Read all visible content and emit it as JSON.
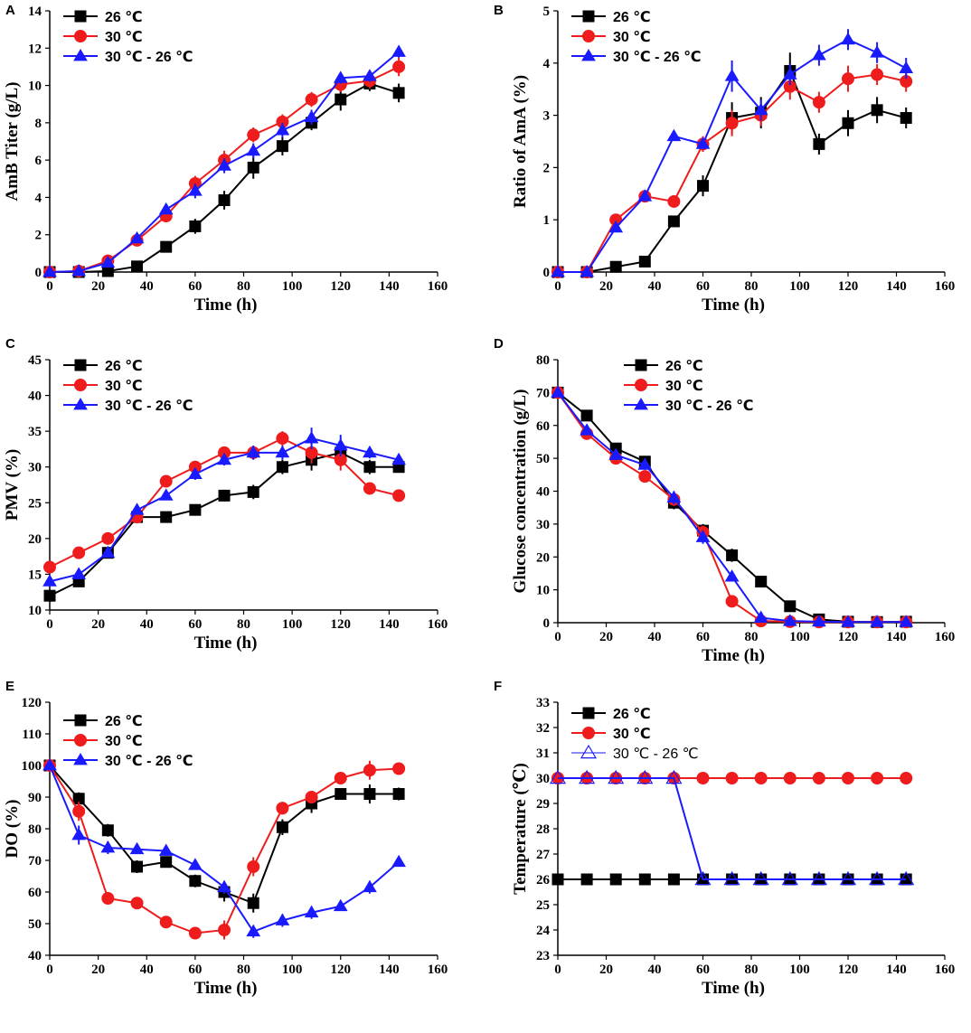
{
  "figure": {
    "description_panels": [
      "A",
      "B",
      "C",
      "D",
      "E",
      "F"
    ]
  },
  "series_styles": {
    "26": {
      "color": "#000000",
      "marker": "square"
    },
    "30": {
      "color": "#ee1c1c",
      "marker": "circle"
    },
    "shift": {
      "color": "#1a1aff",
      "marker": "triangle"
    }
  },
  "chart_data": [
    {
      "panel": "A",
      "type": "line",
      "xlabel": "Time (h)",
      "ylabel": "AmB Titer (g/L)",
      "xlim": [
        0,
        160
      ],
      "ylim": [
        0,
        14
      ],
      "xticks": [
        0,
        20,
        40,
        60,
        80,
        100,
        120,
        140,
        160
      ],
      "yticks": [
        0,
        2,
        4,
        6,
        8,
        10,
        12,
        14
      ],
      "legend": [
        "26 ℃",
        "30 ℃",
        "30 ℃ - 26 ℃"
      ],
      "series": [
        {
          "key": "26",
          "name": "26 ℃",
          "x": [
            0,
            12,
            24,
            36,
            48,
            60,
            72,
            84,
            96,
            108,
            120,
            132,
            144
          ],
          "y": [
            0,
            0,
            0.05,
            0.3,
            1.35,
            2.45,
            3.85,
            5.6,
            6.75,
            8.0,
            9.25,
            10.1,
            9.6
          ],
          "err": [
            0,
            0,
            0,
            0.1,
            0.2,
            0.4,
            0.5,
            0.6,
            0.5,
            0.4,
            0.6,
            0.4,
            0.5
          ]
        },
        {
          "key": "30",
          "name": "30 ℃",
          "x": [
            0,
            12,
            24,
            36,
            48,
            60,
            72,
            84,
            96,
            108,
            120,
            132,
            144
          ],
          "y": [
            0,
            0.05,
            0.6,
            1.7,
            3.0,
            4.75,
            6.0,
            7.35,
            8.05,
            9.25,
            10.05,
            10.25,
            11.0
          ],
          "err": [
            0,
            0,
            0.1,
            0.2,
            0.3,
            0.4,
            0.5,
            0.4,
            0.4,
            0.4,
            0.4,
            0.4,
            0.5
          ]
        },
        {
          "key": "shift",
          "name": "30 ℃ - 26 ℃",
          "x": [
            0,
            12,
            24,
            36,
            48,
            60,
            72,
            84,
            96,
            108,
            120,
            132,
            144
          ],
          "y": [
            0,
            0.05,
            0.5,
            1.8,
            3.35,
            4.35,
            5.7,
            6.5,
            7.6,
            8.3,
            10.4,
            10.5,
            11.8
          ],
          "err": [
            0,
            0,
            0.1,
            0.2,
            0.2,
            0.4,
            0.4,
            0.4,
            0.4,
            0.4,
            0.3,
            0.3,
            0.3
          ]
        }
      ]
    },
    {
      "panel": "B",
      "type": "line",
      "xlabel": "Time (h)",
      "ylabel": "Ratio of AmA (%)",
      "xlim": [
        0,
        160
      ],
      "ylim": [
        0,
        5
      ],
      "xticks": [
        0,
        20,
        40,
        60,
        80,
        100,
        120,
        140,
        160
      ],
      "yticks": [
        0,
        1,
        2,
        3,
        4,
        5
      ],
      "legend": [
        "26 ℃",
        "30 ℃",
        "30 ℃ - 26 ℃"
      ],
      "series": [
        {
          "key": "26",
          "name": "26 ℃",
          "x": [
            0,
            12,
            24,
            36,
            48,
            60,
            72,
            84,
            96,
            108,
            120,
            132,
            144
          ],
          "y": [
            0,
            0,
            0.1,
            0.2,
            0.97,
            1.65,
            2.95,
            3.05,
            3.85,
            2.45,
            2.85,
            3.1,
            2.95
          ],
          "err": [
            0,
            0,
            0,
            0,
            0.05,
            0.2,
            0.3,
            0.3,
            0.35,
            0.2,
            0.25,
            0.25,
            0.2
          ]
        },
        {
          "key": "30",
          "name": "30 ℃",
          "x": [
            0,
            12,
            24,
            36,
            48,
            60,
            72,
            84,
            96,
            108,
            120,
            132,
            144
          ],
          "y": [
            0,
            0,
            1.0,
            1.45,
            1.35,
            2.45,
            2.85,
            3.0,
            3.55,
            3.25,
            3.7,
            3.78,
            3.65
          ],
          "err": [
            0,
            0,
            0,
            0.05,
            0.05,
            0.15,
            0.25,
            0.2,
            0.25,
            0.2,
            0.25,
            0.2,
            0.2
          ]
        },
        {
          "key": "shift",
          "name": "30 ℃ - 26 ℃",
          "x": [
            0,
            12,
            24,
            36,
            48,
            60,
            72,
            84,
            96,
            108,
            120,
            132,
            144
          ],
          "y": [
            0,
            0,
            0.85,
            1.45,
            2.6,
            2.45,
            3.75,
            3.1,
            3.78,
            4.15,
            4.45,
            4.2,
            3.9
          ],
          "err": [
            0,
            0,
            0,
            0.05,
            0.05,
            0.1,
            0.3,
            0.2,
            0.2,
            0.2,
            0.2,
            0.2,
            0.2
          ]
        }
      ]
    },
    {
      "panel": "C",
      "type": "line",
      "xlabel": "Time (h)",
      "ylabel": "PMV (%)",
      "xlim": [
        0,
        160
      ],
      "ylim": [
        10,
        45
      ],
      "xticks": [
        0,
        20,
        40,
        60,
        80,
        100,
        120,
        140,
        160
      ],
      "yticks": [
        10,
        15,
        20,
        25,
        30,
        35,
        40,
        45
      ],
      "legend": [
        "26 ℃",
        "30 ℃",
        "30 ℃ - 26 ℃"
      ],
      "series": [
        {
          "key": "26",
          "name": "26 ℃",
          "x": [
            0,
            12,
            24,
            36,
            48,
            60,
            72,
            84,
            96,
            108,
            120,
            132,
            144
          ],
          "y": [
            12,
            14,
            18,
            23,
            23,
            24,
            26,
            26.5,
            30,
            31,
            32,
            30,
            30
          ],
          "err": [
            0,
            0,
            0,
            0.5,
            0.5,
            0.5,
            0.8,
            1.0,
            1.0,
            1.5,
            1.5,
            1.0,
            0.8
          ]
        },
        {
          "key": "30",
          "name": "30 ℃",
          "x": [
            0,
            12,
            24,
            36,
            48,
            60,
            72,
            84,
            96,
            108,
            120,
            132,
            144
          ],
          "y": [
            16,
            18,
            20,
            23,
            28,
            30,
            32,
            32,
            34,
            32,
            31,
            27,
            26
          ],
          "err": [
            0,
            0,
            0,
            0.5,
            0.5,
            0.5,
            0.8,
            0.8,
            1.0,
            1.5,
            1.5,
            0.8,
            0.5
          ]
        },
        {
          "key": "shift",
          "name": "30 ℃ - 26 ℃",
          "x": [
            0,
            12,
            24,
            36,
            48,
            60,
            72,
            84,
            96,
            108,
            120,
            132,
            144
          ],
          "y": [
            14,
            15,
            18,
            24,
            26,
            29,
            31,
            32,
            32,
            34,
            33,
            32,
            31
          ],
          "err": [
            0,
            0,
            0,
            0.5,
            0.5,
            0.8,
            0.8,
            1.0,
            1.0,
            1.5,
            1.5,
            0.8,
            0.5
          ]
        }
      ]
    },
    {
      "panel": "D",
      "type": "line",
      "xlabel": "Time (h)",
      "ylabel": "Glucose concentration (g/L)",
      "xlim": [
        0,
        160
      ],
      "ylim": [
        0,
        80
      ],
      "xticks": [
        0,
        20,
        40,
        60,
        80,
        100,
        120,
        140,
        160
      ],
      "yticks": [
        0,
        10,
        20,
        30,
        40,
        50,
        60,
        70,
        80
      ],
      "legend": [
        "26 ℃",
        "30 ℃",
        "30 ℃ - 26 ℃"
      ],
      "series": [
        {
          "key": "26",
          "name": "26 ℃",
          "x": [
            0,
            12,
            24,
            36,
            48,
            60,
            72,
            84,
            96,
            108,
            120,
            132,
            144
          ],
          "y": [
            70,
            63,
            53,
            49,
            36.5,
            28,
            20.5,
            12.5,
            5,
            1,
            0.3,
            0.2,
            0.3
          ],
          "err": [
            0,
            1.5,
            1.5,
            1.5,
            2,
            2,
            2,
            1.5,
            1,
            0.5,
            0,
            0,
            0
          ]
        },
        {
          "key": "30",
          "name": "30 ℃",
          "x": [
            0,
            12,
            24,
            36,
            48,
            60,
            72,
            84,
            96,
            108,
            120,
            132,
            144
          ],
          "y": [
            70,
            57.5,
            50,
            44.5,
            37.5,
            27.5,
            6.5,
            0.5,
            0.3,
            0.2,
            0.2,
            0.2,
            0.2
          ],
          "err": [
            0,
            1.5,
            1.5,
            1.5,
            2,
            2,
            1.5,
            0.5,
            0,
            0,
            0,
            0,
            0
          ]
        },
        {
          "key": "shift",
          "name": "30 ℃ - 26 ℃",
          "x": [
            0,
            12,
            24,
            36,
            48,
            60,
            72,
            84,
            96,
            108,
            120,
            132,
            144
          ],
          "y": [
            70,
            58.5,
            51,
            48,
            38,
            26,
            14,
            1.5,
            0.5,
            0.3,
            0.2,
            0.2,
            0.2
          ],
          "err": [
            0,
            1.5,
            1.5,
            1.5,
            2,
            2,
            1.5,
            0.5,
            0,
            0,
            0,
            0,
            0
          ]
        }
      ]
    },
    {
      "panel": "E",
      "type": "line",
      "xlabel": "Time (h)",
      "ylabel": "DO (%)",
      "xlim": [
        0,
        160
      ],
      "ylim": [
        40,
        120
      ],
      "xticks": [
        0,
        20,
        40,
        60,
        80,
        100,
        120,
        140,
        160
      ],
      "yticks": [
        40,
        50,
        60,
        70,
        80,
        90,
        100,
        110,
        120
      ],
      "legend": [
        "26 ℃",
        "30 ℃",
        "30 ℃ - 26 ℃"
      ],
      "series": [
        {
          "key": "26",
          "name": "26 ℃",
          "x": [
            0,
            12,
            24,
            36,
            48,
            60,
            72,
            84,
            96,
            108,
            120,
            132,
            144
          ],
          "y": [
            100,
            89.5,
            79.5,
            68,
            69.5,
            63.5,
            60,
            56.5,
            80.5,
            88,
            91,
            91,
            91
          ],
          "err": [
            0,
            2,
            2,
            2,
            1.5,
            2,
            3,
            3,
            2.5,
            3,
            1.5,
            3,
            2
          ]
        },
        {
          "key": "30",
          "name": "30 ℃",
          "x": [
            0,
            12,
            24,
            36,
            48,
            60,
            72,
            84,
            96,
            108,
            120,
            132,
            144
          ],
          "y": [
            100,
            85.5,
            58,
            56.5,
            50.5,
            47,
            48,
            68,
            86.5,
            90,
            96,
            98.5,
            99
          ],
          "err": [
            0,
            3,
            2,
            1.5,
            1,
            1.5,
            3,
            3,
            2,
            2,
            1.5,
            3,
            1.5
          ]
        },
        {
          "key": "shift",
          "name": "30 ℃ - 26 ℃",
          "x": [
            0,
            12,
            24,
            36,
            48,
            60,
            72,
            84,
            96,
            108,
            120,
            132,
            144
          ],
          "y": [
            100,
            78,
            74,
            73.5,
            73,
            68.5,
            61.5,
            47.5,
            51,
            53.5,
            55.5,
            61.5,
            69.5
          ],
          "err": [
            0,
            3,
            2,
            1.5,
            1.5,
            1.5,
            2,
            2,
            2,
            2,
            1.5,
            2,
            1.5
          ]
        }
      ]
    },
    {
      "panel": "F",
      "type": "line",
      "xlabel": "Time (h)",
      "ylabel": "Temperature (℃)",
      "xlim": [
        0,
        160
      ],
      "ylim": [
        23,
        33
      ],
      "xticks": [
        0,
        20,
        40,
        60,
        80,
        100,
        120,
        140,
        160
      ],
      "yticks": [
        23,
        24,
        25,
        26,
        27,
        28,
        29,
        30,
        31,
        32,
        33
      ],
      "legend": [
        "26 ℃",
        "30 ℃",
        "30 ℃ - 26 ℃"
      ],
      "series": [
        {
          "key": "26",
          "name": "26 ℃",
          "x": [
            0,
            12,
            24,
            36,
            48,
            60,
            72,
            84,
            96,
            108,
            120,
            132,
            144
          ],
          "y": [
            26,
            26,
            26,
            26,
            26,
            26,
            26,
            26,
            26,
            26,
            26,
            26,
            26
          ],
          "err": [
            0,
            0,
            0,
            0,
            0,
            0,
            0,
            0,
            0,
            0,
            0,
            0,
            0
          ]
        },
        {
          "key": "30",
          "name": "30 ℃",
          "x": [
            0,
            12,
            24,
            36,
            48,
            60,
            72,
            84,
            96,
            108,
            120,
            132,
            144
          ],
          "y": [
            30,
            30,
            30,
            30,
            30,
            30,
            30,
            30,
            30,
            30,
            30,
            30,
            30
          ],
          "err": [
            0,
            0,
            0,
            0,
            0,
            0,
            0,
            0,
            0,
            0,
            0,
            0,
            0
          ]
        },
        {
          "key": "shift",
          "name": "30 ℃ - 26 ℃",
          "hollow": true,
          "x": [
            0,
            12,
            24,
            36,
            48,
            60,
            72,
            84,
            96,
            108,
            120,
            132,
            144
          ],
          "y": [
            30,
            30,
            30,
            30,
            30,
            26,
            26,
            26,
            26,
            26,
            26,
            26,
            26
          ],
          "err": [
            0,
            0,
            0,
            0,
            0,
            0,
            0,
            0,
            0,
            0,
            0,
            0,
            0
          ]
        }
      ]
    }
  ]
}
